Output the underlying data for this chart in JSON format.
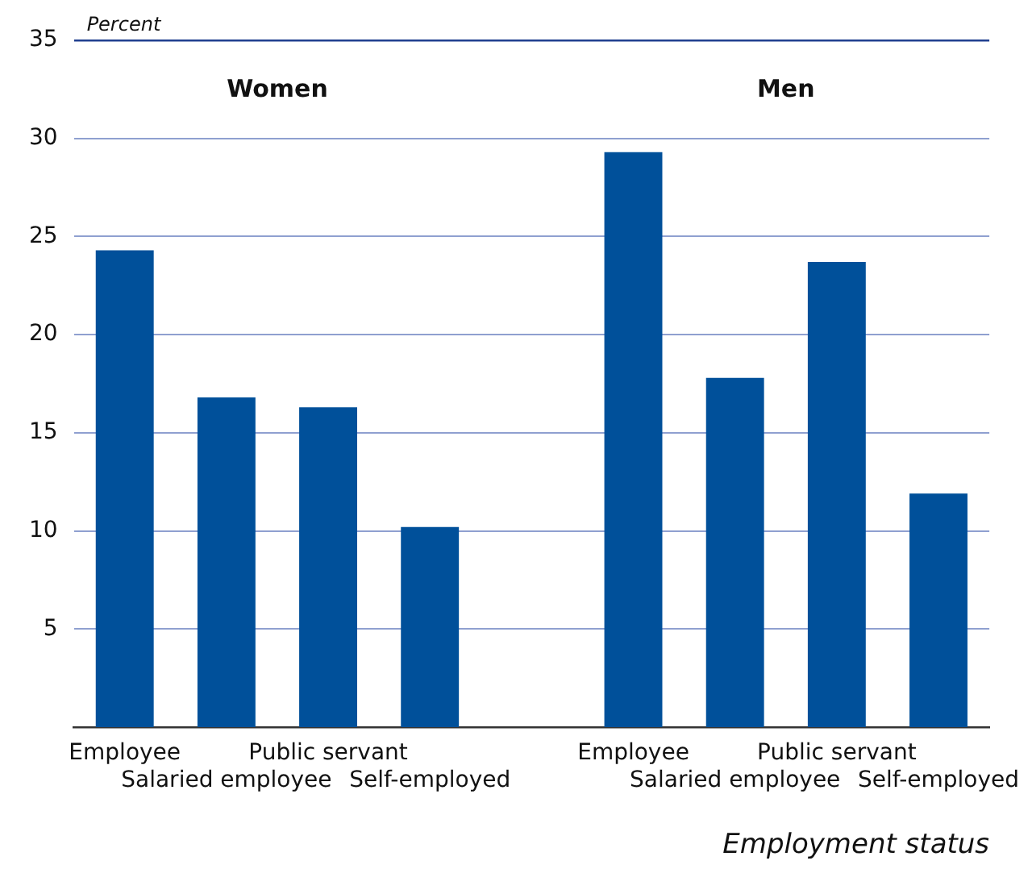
{
  "chart_data": {
    "type": "bar",
    "xlabel": "Employment status",
    "ylabel": "Percent",
    "categories": [
      "Employee",
      "Salaried employee",
      "Public servant",
      "Self-employed",
      null,
      "Employee",
      "Salaried employee",
      "Public servant",
      "Self-employed"
    ],
    "values": [
      24.3,
      16.8,
      16.3,
      10.2,
      null,
      29.3,
      17.8,
      23.7,
      11.9
    ],
    "color": "#00509a",
    "ylim": [
      0,
      35
    ],
    "yticks": [
      5,
      10,
      15,
      20,
      25,
      30,
      35
    ],
    "grid": "y",
    "legend": false,
    "annotations": [
      "Women",
      "Men"
    ]
  }
}
